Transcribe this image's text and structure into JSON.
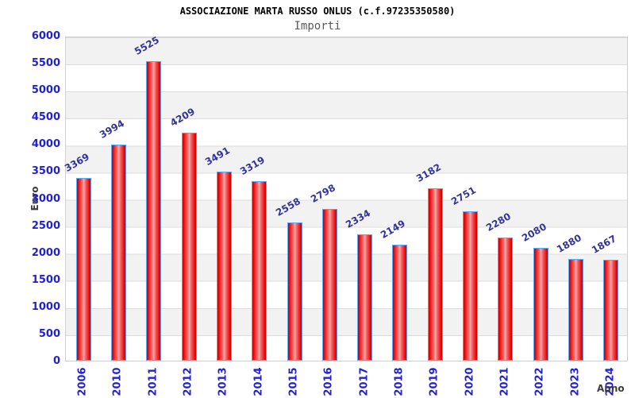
{
  "header": {
    "title": "ASSOCIAZIONE MARTA RUSSO ONLUS (c.f.97235350580)",
    "subtitle": "Importi"
  },
  "chart_data": {
    "type": "bar",
    "title": "ASSOCIAZIONE MARTA RUSSO ONLUS (c.f.97235350580)",
    "subtitle": "Importi",
    "xlabel": "Anno",
    "ylabel": "Euro",
    "categories": [
      "2006",
      "2010",
      "2011",
      "2012",
      "2013",
      "2014",
      "2015",
      "2016",
      "2017",
      "2018",
      "2019",
      "2020",
      "2021",
      "2022",
      "2023",
      "2024"
    ],
    "values": [
      3369,
      3994,
      5525,
      4209,
      3491,
      3319,
      2558,
      2798,
      2334,
      2149,
      3182,
      2751,
      2280,
      2080,
      1880,
      1867
    ],
    "ylim": [
      0,
      6000
    ],
    "ytick_step": 500,
    "legend": "none",
    "grid": "alternating horizontal bands every 500",
    "colors": {
      "bar_fill_edge": "#c40000",
      "bar_fill_center": "#fbadad",
      "bar_border": "#55aaff",
      "tick_label": "#2222cc",
      "value_label": "#333399",
      "band_gray": "#f2f2f2",
      "band_white": "#ffffff",
      "axis_title": "#3d3d3d",
      "title": "#000000",
      "subtitle": "#595959"
    }
  }
}
